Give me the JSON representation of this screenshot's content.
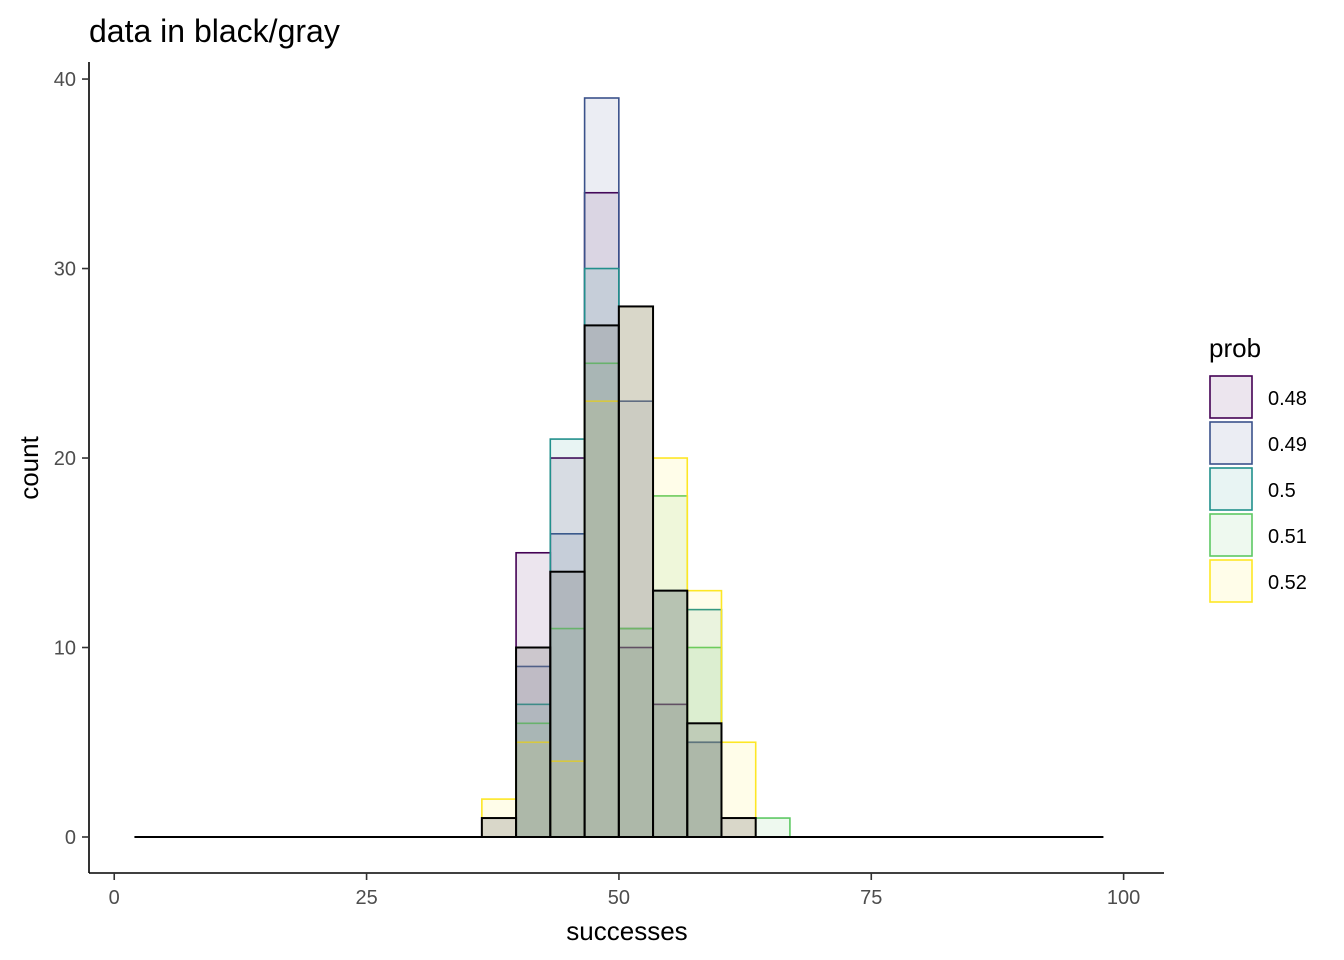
{
  "chart_data": {
    "type": "bar",
    "title": "data in black/gray",
    "xlabel": "successes",
    "ylabel": "count",
    "xlim": [
      -2.5,
      104
    ],
    "ylim": [
      -1.9,
      40.9
    ],
    "x_ticks": [
      0,
      25,
      50,
      75,
      100
    ],
    "y_ticks": [
      0,
      10,
      20,
      30,
      40
    ],
    "bin_edges": [
      36.42,
      39.81,
      43.2,
      46.6,
      49.99,
      53.38,
      56.77,
      60.16,
      63.55,
      66.94
    ],
    "baseline_range": [
      2,
      98
    ],
    "legend": {
      "title": "prob",
      "placement": "right"
    },
    "series": [
      {
        "name": "0.48",
        "color": "#440154",
        "fill_rgba": "rgba(68,1,84,0.10)",
        "values": [
          0,
          15,
          20,
          34,
          10,
          7,
          5,
          0,
          0
        ]
      },
      {
        "name": "0.49",
        "color": "#3b528b",
        "fill_rgba": "rgba(59,82,139,0.10)",
        "values": [
          0,
          9,
          16,
          39,
          23,
          13,
          5,
          0,
          0
        ]
      },
      {
        "name": "0.5",
        "color": "#21908c",
        "fill_rgba": "rgba(33,144,140,0.10)",
        "values": [
          0,
          7,
          21,
          30,
          11,
          13,
          12,
          0,
          0
        ]
      },
      {
        "name": "0.51",
        "color": "#5dc863",
        "fill_rgba": "rgba(93,200,99,0.10)",
        "values": [
          0,
          6,
          11,
          25,
          11,
          18,
          10,
          0,
          1
        ]
      },
      {
        "name": "0.52",
        "color": "#fde725",
        "fill_rgba": "rgba(253,231,37,0.10)",
        "values": [
          2,
          5,
          4,
          23,
          28,
          20,
          13,
          5,
          0
        ]
      }
    ],
    "data_series": {
      "color": "#000000",
      "fill_rgba": "rgba(128,128,128,0.30)",
      "values": [
        1,
        10,
        14,
        27,
        28,
        13,
        6,
        1,
        0
      ]
    }
  }
}
